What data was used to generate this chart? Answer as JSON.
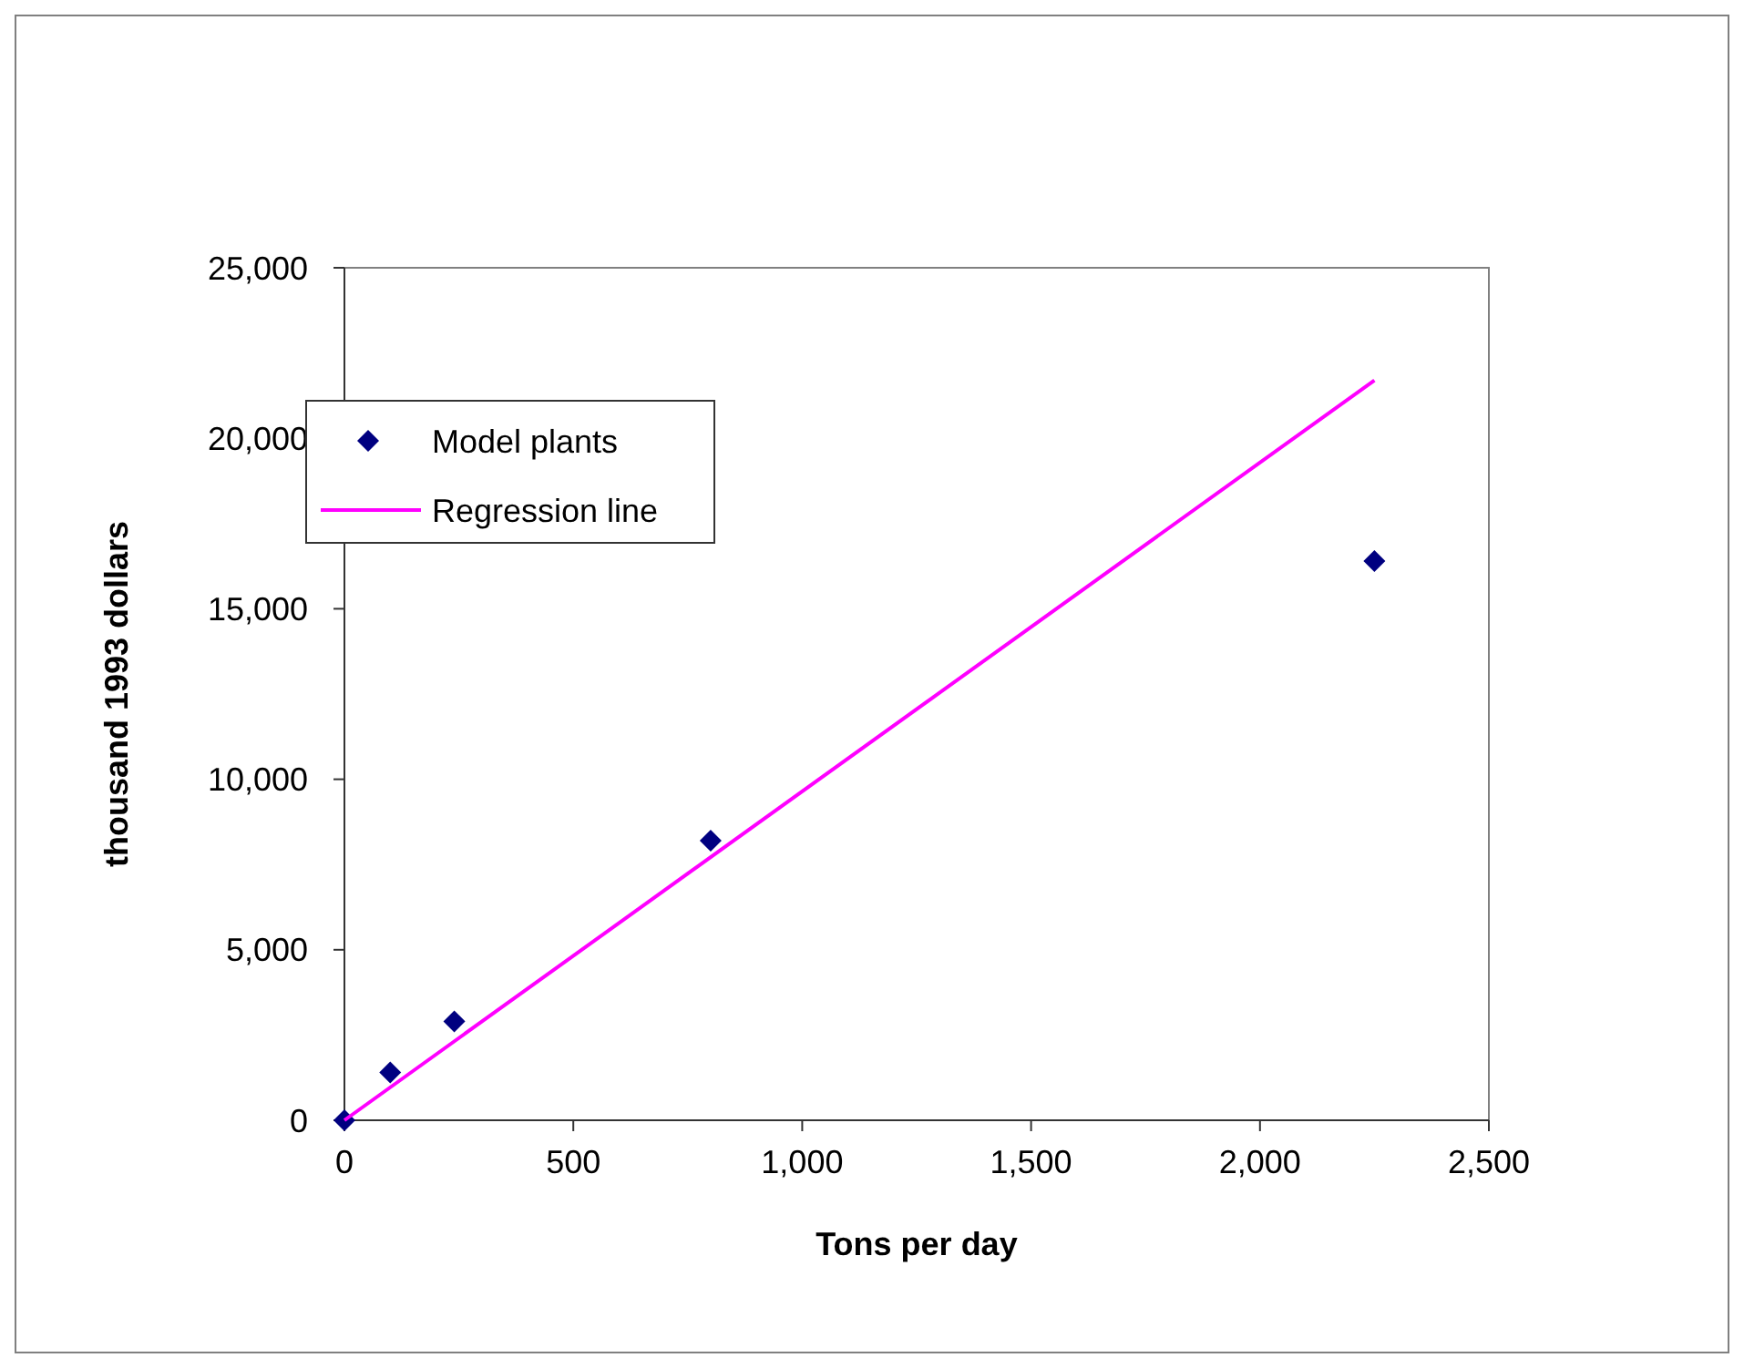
{
  "chart_data": {
    "type": "scatter",
    "xlabel": "Tons per day",
    "ylabel": "thousand 1993 dollars",
    "xlim": [
      0,
      2500
    ],
    "xticks": [
      {
        "value": 0,
        "label": "0"
      },
      {
        "value": 500,
        "label": "500"
      },
      {
        "value": 1000,
        "label": "1,000"
      },
      {
        "value": 1500,
        "label": "1,500"
      },
      {
        "value": 2000,
        "label": "2,000"
      },
      {
        "value": 2500,
        "label": "2,500"
      }
    ],
    "ylim": [
      0,
      25000
    ],
    "yticks": [
      {
        "value": 0,
        "label": "0"
      },
      {
        "value": 5000,
        "label": "5,000"
      },
      {
        "value": 10000,
        "label": "10,000"
      },
      {
        "value": 15000,
        "label": "15,000"
      },
      {
        "value": 20000,
        "label": "20,000"
      },
      {
        "value": 25000,
        "label": "25,000"
      }
    ],
    "legend": "top left",
    "grid": false,
    "series": [
      {
        "name": "Model plants",
        "marker": "diamond",
        "color": "#000080",
        "x": [
          0,
          100,
          240,
          800,
          2250
        ],
        "values": [
          0,
          1400,
          2900,
          8200,
          16400
        ]
      },
      {
        "name": "Regression line",
        "type": "line",
        "marker": "none",
        "line_style": "solid",
        "color": "#ff00ff",
        "x": [
          0,
          2250
        ],
        "values": [
          0,
          21700
        ]
      }
    ]
  }
}
